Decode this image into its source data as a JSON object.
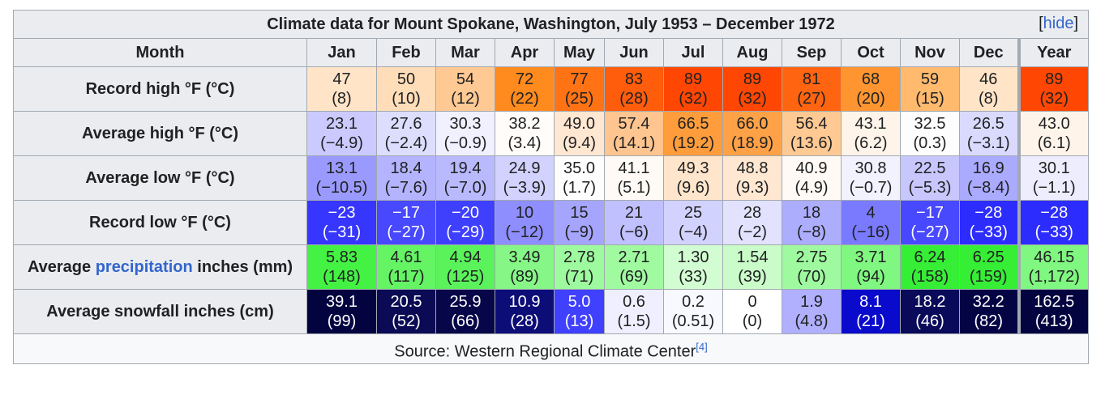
{
  "caption": {
    "title": "Climate data for Mount Spokane, Washington, July 1953 – December 1972",
    "hide_label": "hide"
  },
  "header": {
    "month_label": "Month",
    "months": [
      "Jan",
      "Feb",
      "Mar",
      "Apr",
      "May",
      "Jun",
      "Jul",
      "Aug",
      "Sep",
      "Oct",
      "Nov",
      "Dec",
      "Year"
    ]
  },
  "rows": [
    {
      "label": "Record high °F (°C)",
      "cells": [
        {
          "f": "47",
          "c": "(8)",
          "bg": "#ffe4c8",
          "fg": "#202122"
        },
        {
          "f": "50",
          "c": "(10)",
          "bg": "#ffddb9",
          "fg": "#202122"
        },
        {
          "f": "54",
          "c": "(12)",
          "bg": "#ffc994",
          "fg": "#202122"
        },
        {
          "f": "72",
          "c": "(22)",
          "bg": "#ff8a1e",
          "fg": "#202122"
        },
        {
          "f": "77",
          "c": "(25)",
          "bg": "#ff7315",
          "fg": "#202122"
        },
        {
          "f": "83",
          "c": "(28)",
          "bg": "#ff5c0c",
          "fg": "#202122"
        },
        {
          "f": "89",
          "c": "(32)",
          "bg": "#ff4703",
          "fg": "#202122"
        },
        {
          "f": "89",
          "c": "(32)",
          "bg": "#ff4703",
          "fg": "#202122"
        },
        {
          "f": "81",
          "c": "(27)",
          "bg": "#ff6410",
          "fg": "#202122"
        },
        {
          "f": "68",
          "c": "(20)",
          "bg": "#ff9530",
          "fg": "#202122"
        },
        {
          "f": "59",
          "c": "(15)",
          "bg": "#ffba6e",
          "fg": "#202122"
        },
        {
          "f": "46",
          "c": "(8)",
          "bg": "#ffe4c8",
          "fg": "#202122"
        },
        {
          "f": "89",
          "c": "(32)",
          "bg": "#ff4703",
          "fg": "#202122"
        }
      ]
    },
    {
      "label": "Average high °F (°C)",
      "cells": [
        {
          "f": "23.1",
          "c": "(−4.9)",
          "bg": "#cacafe",
          "fg": "#202122"
        },
        {
          "f": "27.6",
          "c": "(−2.4)",
          "bg": "#dddefe",
          "fg": "#202122"
        },
        {
          "f": "30.3",
          "c": "(−0.9)",
          "bg": "#f0f0fe",
          "fg": "#202122"
        },
        {
          "f": "38.2",
          "c": "(3.4)",
          "bg": "#fffcf9",
          "fg": "#202122"
        },
        {
          "f": "49.0",
          "c": "(9.4)",
          "bg": "#ffe7d2",
          "fg": "#202122"
        },
        {
          "f": "57.4",
          "c": "(14.1)",
          "bg": "#ffc590",
          "fg": "#202122"
        },
        {
          "f": "66.5",
          "c": "(19.2)",
          "bg": "#ff9d3c",
          "fg": "#202122"
        },
        {
          "f": "66.0",
          "c": "(18.9)",
          "bg": "#ffa147",
          "fg": "#202122"
        },
        {
          "f": "56.4",
          "c": "(13.6)",
          "bg": "#ffc994",
          "fg": "#202122"
        },
        {
          "f": "43.1",
          "c": "(6.2)",
          "bg": "#fff4ea",
          "fg": "#202122"
        },
        {
          "f": "32.5",
          "c": "(0.3)",
          "bg": "#fdfdfe",
          "fg": "#202122"
        },
        {
          "f": "26.5",
          "c": "(−3.1)",
          "bg": "#dadafe",
          "fg": "#202122"
        },
        {
          "f": "43.0",
          "c": "(6.1)",
          "bg": "#fff4ea",
          "fg": "#202122"
        }
      ]
    },
    {
      "label": "Average low °F (°C)",
      "cells": [
        {
          "f": "13.1",
          "c": "(−10.5)",
          "bg": "#9a9afe",
          "fg": "#202122"
        },
        {
          "f": "18.4",
          "c": "(−7.6)",
          "bg": "#b4b4fe",
          "fg": "#202122"
        },
        {
          "f": "19.4",
          "c": "(−7.0)",
          "bg": "#b9b9fe",
          "fg": "#202122"
        },
        {
          "f": "24.9",
          "c": "(−3.9)",
          "bg": "#d2d2fe",
          "fg": "#202122"
        },
        {
          "f": "35.0",
          "c": "(1.7)",
          "bg": "#fefefe",
          "fg": "#202122"
        },
        {
          "f": "41.1",
          "c": "(5.1)",
          "bg": "#fffaf5",
          "fg": "#202122"
        },
        {
          "f": "49.3",
          "c": "(9.6)",
          "bg": "#ffe5cb",
          "fg": "#202122"
        },
        {
          "f": "48.8",
          "c": "(9.3)",
          "bg": "#ffe7d2",
          "fg": "#202122"
        },
        {
          "f": "40.9",
          "c": "(4.9)",
          "bg": "#fffaf5",
          "fg": "#202122"
        },
        {
          "f": "30.8",
          "c": "(−0.7)",
          "bg": "#f2f2fe",
          "fg": "#202122"
        },
        {
          "f": "22.5",
          "c": "(−5.3)",
          "bg": "#c7c7fe",
          "fg": "#202122"
        },
        {
          "f": "16.9",
          "c": "(−8.4)",
          "bg": "#aaaafe",
          "fg": "#202122"
        },
        {
          "f": "30.1",
          "c": "(−1.1)",
          "bg": "#ededfe",
          "fg": "#202122"
        }
      ]
    },
    {
      "label": "Record low °F (°C)",
      "cells": [
        {
          "f": "−23",
          "c": "(−31)",
          "bg": "#3636fe",
          "fg": "#ffffff"
        },
        {
          "f": "−17",
          "c": "(−27)",
          "bg": "#4848fe",
          "fg": "#ffffff"
        },
        {
          "f": "−20",
          "c": "(−29)",
          "bg": "#3f3ffe",
          "fg": "#ffffff"
        },
        {
          "f": "10",
          "c": "(−12)",
          "bg": "#8e8efe",
          "fg": "#202122"
        },
        {
          "f": "15",
          "c": "(−9)",
          "bg": "#a5a5fe",
          "fg": "#202122"
        },
        {
          "f": "21",
          "c": "(−6)",
          "bg": "#c0c0fe",
          "fg": "#202122"
        },
        {
          "f": "25",
          "c": "(−4)",
          "bg": "#d2d2fe",
          "fg": "#202122"
        },
        {
          "f": "28",
          "c": "(−2)",
          "bg": "#e2e2fe",
          "fg": "#202122"
        },
        {
          "f": "18",
          "c": "(−8)",
          "bg": "#adadfe",
          "fg": "#202122"
        },
        {
          "f": "4",
          "c": "(−16)",
          "bg": "#7a7afe",
          "fg": "#202122"
        },
        {
          "f": "−17",
          "c": "(−27)",
          "bg": "#4848fe",
          "fg": "#ffffff"
        },
        {
          "f": "−28",
          "c": "(−33)",
          "bg": "#2c2cfe",
          "fg": "#ffffff"
        },
        {
          "f": "−28",
          "c": "(−33)",
          "bg": "#2c2cfe",
          "fg": "#ffffff"
        }
      ]
    },
    {
      "label_prefix": "Average ",
      "label_link": "precipitation",
      "label_suffix": " inches (mm)",
      "cells": [
        {
          "f": "5.83",
          "c": "(148)",
          "bg": "#44f244",
          "fg": "#202122"
        },
        {
          "f": "4.61",
          "c": "(117)",
          "bg": "#64f464",
          "fg": "#202122"
        },
        {
          "f": "4.94",
          "c": "(125)",
          "bg": "#5bf35b",
          "fg": "#202122"
        },
        {
          "f": "3.49",
          "c": "(89)",
          "bg": "#86f786",
          "fg": "#202122"
        },
        {
          "f": "2.78",
          "c": "(71)",
          "bg": "#9efa9e",
          "fg": "#202122"
        },
        {
          "f": "2.71",
          "c": "(69)",
          "bg": "#a0faa0",
          "fg": "#202122"
        },
        {
          "f": "1.30",
          "c": "(33)",
          "bg": "#d2fdd2",
          "fg": "#202122"
        },
        {
          "f": "1.54",
          "c": "(39)",
          "bg": "#c9fcc9",
          "fg": "#202122"
        },
        {
          "f": "2.75",
          "c": "(70)",
          "bg": "#9ffa9f",
          "fg": "#202122"
        },
        {
          "f": "3.71",
          "c": "(94)",
          "bg": "#80f780",
          "fg": "#202122"
        },
        {
          "f": "6.24",
          "c": "(158)",
          "bg": "#36ee36",
          "fg": "#202122"
        },
        {
          "f": "6.25",
          "c": "(159)",
          "bg": "#36ee36",
          "fg": "#202122"
        },
        {
          "f": "46.15",
          "c": "(1,172)",
          "bg": "#80f780",
          "fg": "#202122"
        }
      ]
    },
    {
      "label": "Average snowfall inches (cm)",
      "cells": [
        {
          "f": "39.1",
          "c": "(99)",
          "bg": "#030340",
          "fg": "#ffffff"
        },
        {
          "f": "20.5",
          "c": "(52)",
          "bg": "#0b0b55",
          "fg": "#ffffff"
        },
        {
          "f": "25.9",
          "c": "(66)",
          "bg": "#060648",
          "fg": "#ffffff"
        },
        {
          "f": "10.9",
          "c": "(28)",
          "bg": "#0d0d78",
          "fg": "#ffffff"
        },
        {
          "f": "5.0",
          "c": "(13)",
          "bg": "#4040ff",
          "fg": "#ffffff"
        },
        {
          "f": "0.6",
          "c": "(1.5)",
          "bg": "#efefff",
          "fg": "#202122"
        },
        {
          "f": "0.2",
          "c": "(0.51)",
          "bg": "#f8f8ff",
          "fg": "#202122"
        },
        {
          "f": "0",
          "c": "(0)",
          "bg": "#ffffff",
          "fg": "#202122"
        },
        {
          "f": "1.9",
          "c": "(4.8)",
          "bg": "#b0b0ff",
          "fg": "#202122"
        },
        {
          "f": "8.1",
          "c": "(21)",
          "bg": "#0a0acc",
          "fg": "#ffffff"
        },
        {
          "f": "18.2",
          "c": "(46)",
          "bg": "#0a0a5a",
          "fg": "#ffffff"
        },
        {
          "f": "32.2",
          "c": "(82)",
          "bg": "#040444",
          "fg": "#ffffff"
        },
        {
          "f": "162.5",
          "c": "(413)",
          "bg": "#030340",
          "fg": "#ffffff"
        }
      ]
    }
  ],
  "source": {
    "text": "Source: Western Regional Climate Center",
    "ref": "[4]"
  }
}
